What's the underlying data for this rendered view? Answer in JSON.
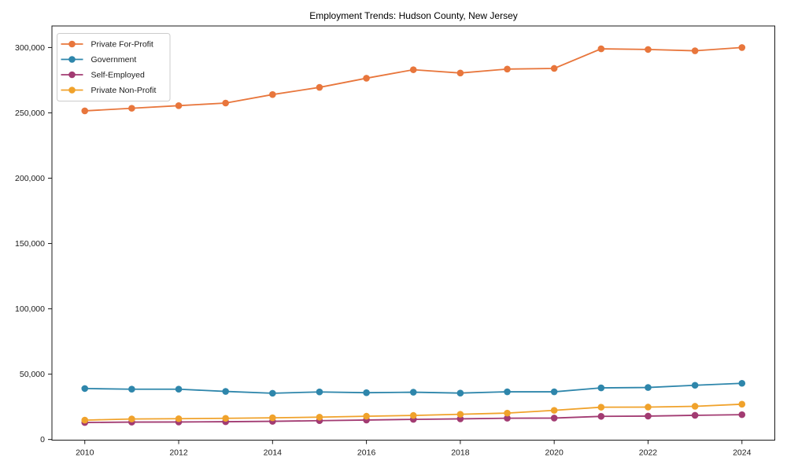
{
  "chart_data": {
    "type": "line",
    "title": "Employment Trends: Hudson County, New Jersey",
    "xlabel": "",
    "ylabel": "",
    "x": [
      2010,
      2011,
      2012,
      2013,
      2014,
      2015,
      2016,
      2017,
      2018,
      2019,
      2020,
      2021,
      2022,
      2023,
      2024
    ],
    "series": [
      {
        "name": "Private For-Profit",
        "color": "#E8763C",
        "values": [
          251500,
          253500,
          255500,
          257500,
          264000,
          269500,
          276500,
          283000,
          280500,
          283500,
          284000,
          299000,
          298500,
          297500,
          300000
        ]
      },
      {
        "name": "Government",
        "color": "#2E86AB",
        "values": [
          39000,
          38500,
          38500,
          36800,
          35400,
          36400,
          35800,
          36200,
          35500,
          36500,
          36500,
          39500,
          39800,
          41500,
          43000
        ]
      },
      {
        "name": "Self-Employed",
        "color": "#A23B72",
        "values": [
          13000,
          13300,
          13400,
          13600,
          13900,
          14400,
          14900,
          15400,
          15800,
          16300,
          16400,
          17700,
          17900,
          18500,
          19000
        ]
      },
      {
        "name": "Private Non-Profit",
        "color": "#F0A22B",
        "values": [
          14800,
          15700,
          15900,
          16200,
          16600,
          17100,
          17800,
          18400,
          19300,
          20200,
          22300,
          24700,
          24800,
          25400,
          27000
        ]
      }
    ],
    "xticks": [
      2010,
      2012,
      2014,
      2016,
      2018,
      2020,
      2022,
      2024
    ],
    "yticks": [
      0,
      50000,
      100000,
      150000,
      200000,
      250000,
      300000
    ],
    "xlim": [
      2009.3,
      2024.7
    ],
    "ylim": [
      -500,
      316500
    ],
    "grid": false,
    "legend_position": "upper-left",
    "axis_color": "#1a1a1a",
    "legend_border_color": "#cccccc",
    "background_color": "#ffffff"
  }
}
